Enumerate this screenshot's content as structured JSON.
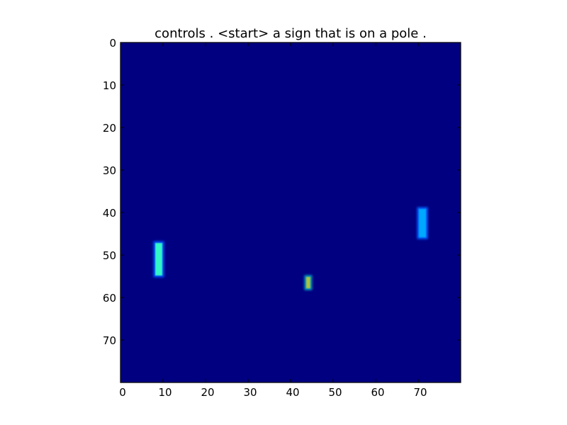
{
  "chart_data": {
    "type": "heatmap",
    "title": "controls . <start> a sign that is on a pole .",
    "xlabel": "",
    "ylabel": "",
    "xlim": [
      0,
      80
    ],
    "ylim": [
      80,
      0
    ],
    "x_ticks": [
      "0",
      "10",
      "20",
      "30",
      "40",
      "50",
      "60",
      "70"
    ],
    "y_ticks": [
      "0",
      "10",
      "20",
      "30",
      "40",
      "50",
      "60",
      "70"
    ],
    "grid": false,
    "colormap": "jet",
    "background_color": "#000080",
    "regions": [
      {
        "name": "left-bar",
        "x": [
          8,
          10
        ],
        "y": [
          47,
          55
        ],
        "core_color": "#30f5c8",
        "edge_color": "#0050ff"
      },
      {
        "name": "right-bar",
        "x": [
          70,
          72
        ],
        "y": [
          39,
          46
        ],
        "core_color": "#00a8ff",
        "edge_color": "#0060ff"
      },
      {
        "name": "center-dots",
        "x": [
          43.5,
          44.8
        ],
        "y": [
          55,
          58
        ],
        "core_color": "#b0c040",
        "edge_color": "#00a0c0"
      }
    ]
  }
}
